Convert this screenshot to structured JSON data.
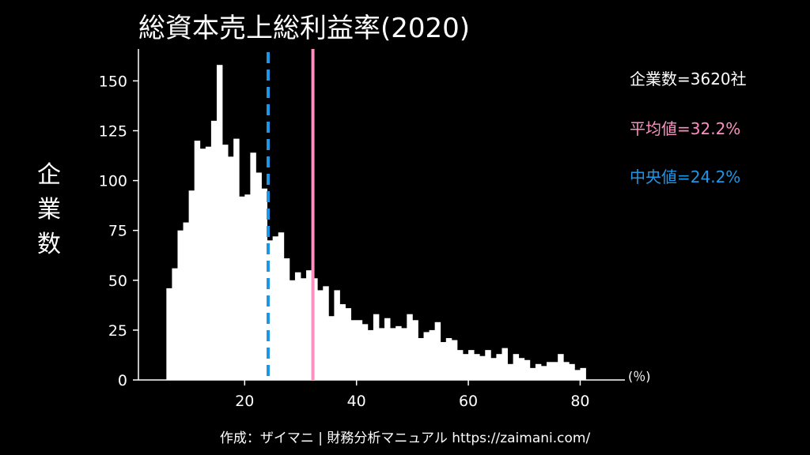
{
  "title": "総資本売上総利益率(2020)",
  "ylabel_chars": [
    "企",
    "業",
    "数"
  ],
  "unit_label": "(％)",
  "stats": {
    "count_label": "企業数=3620社",
    "mean_label": "平均値=32.2%",
    "median_label": "中央値=24.2%"
  },
  "footer": "作成：ザイマニ | 財務分析マニュアル https://zaimani.com/",
  "colors": {
    "background": "#000000",
    "bars": "#ffffff",
    "mean": "#ff8fc0",
    "median": "#1e96e6",
    "count_text": "#ffffff"
  },
  "chart_data": {
    "type": "bar",
    "title": "総資本売上総利益率(2020)",
    "ylabel": "企業数",
    "xlabel": "(％)",
    "bin_start": 6,
    "bin_width": 1,
    "values": [
      46,
      56,
      75,
      79,
      95,
      120,
      116,
      117,
      130,
      158,
      118,
      112,
      121,
      92,
      93,
      114,
      104,
      96,
      70,
      72,
      74,
      61,
      50,
      54,
      51,
      55,
      51,
      45,
      47,
      32,
      45,
      38,
      36,
      30,
      30,
      28,
      25,
      33,
      26,
      31,
      26,
      27,
      26,
      33,
      30,
      21,
      24,
      25,
      29,
      19,
      21,
      20,
      15,
      13,
      15,
      13,
      12,
      15,
      11,
      13,
      16,
      8,
      13,
      11,
      10,
      6,
      8,
      7,
      9,
      9,
      13,
      9,
      8,
      5,
      6
    ],
    "xlim": [
      1,
      88
    ],
    "ylim": [
      0,
      166
    ],
    "xticks": [
      20,
      40,
      60,
      80
    ],
    "yticks": [
      0,
      25,
      50,
      75,
      100,
      125,
      150
    ],
    "mean": 32.2,
    "median": 24.2,
    "count": 3620,
    "grid": false
  }
}
